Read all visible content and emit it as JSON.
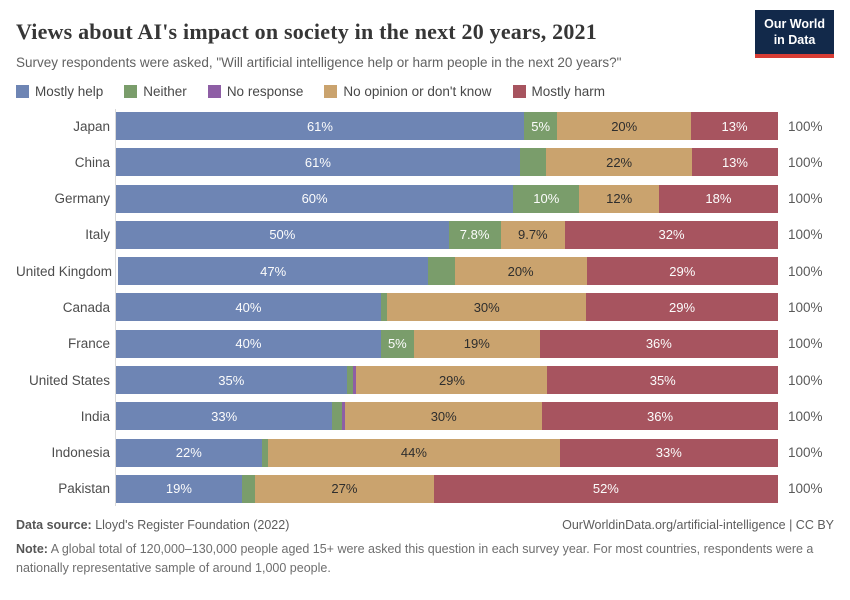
{
  "header": {
    "logo": {
      "line1": "Our World",
      "line2": "in Data"
    }
  },
  "colors": {
    "mostly_help": "#6e85b4",
    "neither": "#7a9d6b",
    "no_response": "#8e5ea5",
    "no_opinion": "#caa36e",
    "mostly_harm": "#a7545f",
    "logo_bg": "#12294a",
    "logo_underline": "#d73c34",
    "axis_line": "#d9d9d9"
  },
  "chart_data": {
    "type": "bar",
    "stacked": true,
    "orientation": "horizontal",
    "unit": "%",
    "title": "Views about AI's impact on society in the next 20 years, 2021",
    "subtitle": "Survey respondents were asked, \"Will artificial intelligence help or harm people in the next 20 years?\"",
    "legend_position": "top",
    "grid": false,
    "xlim": [
      0,
      100
    ],
    "row_total_label": "100%",
    "series": [
      {
        "key": "mostly_help",
        "name": "Mostly help"
      },
      {
        "key": "neither",
        "name": "Neither"
      },
      {
        "key": "no_response",
        "name": "No response"
      },
      {
        "key": "no_opinion",
        "name": "No opinion or don't know"
      },
      {
        "key": "mostly_harm",
        "name": "Mostly harm"
      }
    ],
    "rows": [
      {
        "country": "Japan",
        "total": "100%",
        "segments": [
          {
            "key": "mostly_help",
            "value": 61,
            "label": "61%"
          },
          {
            "key": "neither",
            "value": 5,
            "label": "5%"
          },
          {
            "key": "no_opinion",
            "value": 20,
            "label": "20%"
          },
          {
            "key": "mostly_harm",
            "value": 13,
            "label": "13%"
          }
        ]
      },
      {
        "country": "China",
        "total": "100%",
        "segments": [
          {
            "key": "mostly_help",
            "value": 61,
            "label": "61%"
          },
          {
            "key": "neither",
            "value": 4,
            "label": ""
          },
          {
            "key": "no_opinion",
            "value": 22,
            "label": "22%"
          },
          {
            "key": "mostly_harm",
            "value": 13,
            "label": "13%"
          }
        ]
      },
      {
        "country": "Germany",
        "total": "100%",
        "segments": [
          {
            "key": "mostly_help",
            "value": 60,
            "label": "60%"
          },
          {
            "key": "neither",
            "value": 10,
            "label": "10%"
          },
          {
            "key": "no_opinion",
            "value": 12,
            "label": "12%"
          },
          {
            "key": "mostly_harm",
            "value": 18,
            "label": "18%"
          }
        ]
      },
      {
        "country": "Italy",
        "total": "100%",
        "segments": [
          {
            "key": "mostly_help",
            "value": 50,
            "label": "50%"
          },
          {
            "key": "neither",
            "value": 7.8,
            "label": "7.8%"
          },
          {
            "key": "no_opinion",
            "value": 9.7,
            "label": "9.7%"
          },
          {
            "key": "mostly_harm",
            "value": 32,
            "label": "32%"
          }
        ]
      },
      {
        "country": "United Kingdom",
        "total": "100%",
        "segments": [
          {
            "key": "mostly_help",
            "value": 47,
            "label": "47%"
          },
          {
            "key": "neither",
            "value": 4,
            "label": ""
          },
          {
            "key": "no_opinion",
            "value": 20,
            "label": "20%"
          },
          {
            "key": "mostly_harm",
            "value": 29,
            "label": "29%"
          }
        ]
      },
      {
        "country": "Canada",
        "total": "100%",
        "segments": [
          {
            "key": "mostly_help",
            "value": 40,
            "label": "40%"
          },
          {
            "key": "neither",
            "value": 1,
            "label": ""
          },
          {
            "key": "no_opinion",
            "value": 30,
            "label": "30%"
          },
          {
            "key": "mostly_harm",
            "value": 29,
            "label": "29%"
          }
        ]
      },
      {
        "country": "France",
        "total": "100%",
        "segments": [
          {
            "key": "mostly_help",
            "value": 40,
            "label": "40%"
          },
          {
            "key": "neither",
            "value": 5,
            "label": "5%"
          },
          {
            "key": "no_opinion",
            "value": 19,
            "label": "19%"
          },
          {
            "key": "mostly_harm",
            "value": 36,
            "label": "36%"
          }
        ]
      },
      {
        "country": "United States",
        "total": "100%",
        "segments": [
          {
            "key": "mostly_help",
            "value": 35,
            "label": "35%"
          },
          {
            "key": "neither",
            "value": 1,
            "label": ""
          },
          {
            "key": "no_response",
            "value": 0.5,
            "label": ""
          },
          {
            "key": "no_opinion",
            "value": 29,
            "label": "29%"
          },
          {
            "key": "mostly_harm",
            "value": 35,
            "label": "35%"
          }
        ]
      },
      {
        "country": "India",
        "total": "100%",
        "segments": [
          {
            "key": "mostly_help",
            "value": 33,
            "label": "33%"
          },
          {
            "key": "neither",
            "value": 1.5,
            "label": ""
          },
          {
            "key": "no_response",
            "value": 0.5,
            "label": ""
          },
          {
            "key": "no_opinion",
            "value": 30,
            "label": "30%"
          },
          {
            "key": "mostly_harm",
            "value": 36,
            "label": "36%"
          }
        ]
      },
      {
        "country": "Indonesia",
        "total": "100%",
        "segments": [
          {
            "key": "mostly_help",
            "value": 22,
            "label": "22%"
          },
          {
            "key": "neither",
            "value": 1,
            "label": ""
          },
          {
            "key": "no_opinion",
            "value": 44,
            "label": "44%"
          },
          {
            "key": "mostly_harm",
            "value": 33,
            "label": "33%"
          }
        ]
      },
      {
        "country": "Pakistan",
        "total": "100%",
        "segments": [
          {
            "key": "mostly_help",
            "value": 19,
            "label": "19%"
          },
          {
            "key": "neither",
            "value": 2,
            "label": ""
          },
          {
            "key": "no_opinion",
            "value": 27,
            "label": "27%"
          },
          {
            "key": "mostly_harm",
            "value": 52,
            "label": "52%"
          }
        ]
      }
    ]
  },
  "footer": {
    "datasource_label": "Data source:",
    "datasource_text": " Lloyd's Register Foundation (2022)",
    "link": "OurWorldinData.org/artificial-intelligence | CC BY",
    "note_label": "Note:",
    "note_text": " A global total of 120,000–130,000 people aged 15+ were asked this question in each survey year. For most countries, respondents were a nationally representative sample of around 1,000 people."
  }
}
